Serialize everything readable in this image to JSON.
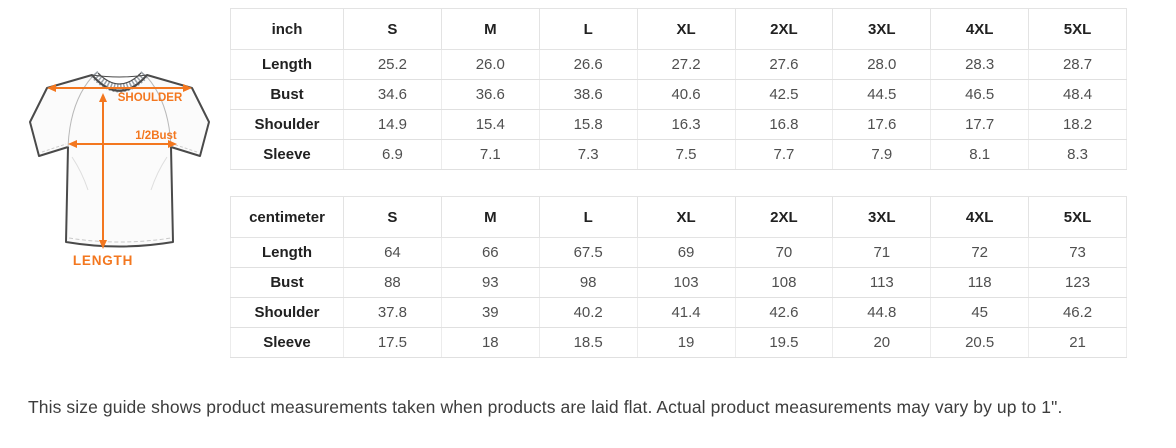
{
  "diagram": {
    "shoulder_label": "SHOULDER",
    "bust_label": "1/2Bust",
    "length_label": "LENGTH",
    "accent_color": "#f3771f",
    "collar_color": "#9aa1a8",
    "outline_color": "#4a4a4a"
  },
  "tables": [
    {
      "unit_header": "inch",
      "columns": [
        "S",
        "M",
        "L",
        "XL",
        "2XL",
        "3XL",
        "4XL",
        "5XL"
      ],
      "rows": [
        {
          "label": "Length",
          "values": [
            "25.2",
            "26.0",
            "26.6",
            "27.2",
            "27.6",
            "28.0",
            "28.3",
            "28.7"
          ]
        },
        {
          "label": "Bust",
          "values": [
            "34.6",
            "36.6",
            "38.6",
            "40.6",
            "42.5",
            "44.5",
            "46.5",
            "48.4"
          ]
        },
        {
          "label": "Shoulder",
          "values": [
            "14.9",
            "15.4",
            "15.8",
            "16.3",
            "16.8",
            "17.6",
            "17.7",
            "18.2"
          ]
        },
        {
          "label": "Sleeve",
          "values": [
            "6.9",
            "7.1",
            "7.3",
            "7.5",
            "7.7",
            "7.9",
            "8.1",
            "8.3"
          ]
        }
      ]
    },
    {
      "unit_header": "centimeter",
      "columns": [
        "S",
        "M",
        "L",
        "XL",
        "2XL",
        "3XL",
        "4XL",
        "5XL"
      ],
      "rows": [
        {
          "label": "Length",
          "values": [
            "64",
            "66",
            "67.5",
            "69",
            "70",
            "71",
            "72",
            "73"
          ]
        },
        {
          "label": "Bust",
          "values": [
            "88",
            "93",
            "98",
            "103",
            "108",
            "113",
            "118",
            "123"
          ]
        },
        {
          "label": "Shoulder",
          "values": [
            "37.8",
            "39",
            "40.2",
            "41.4",
            "42.6",
            "44.8",
            "45",
            "46.2"
          ]
        },
        {
          "label": "Sleeve",
          "values": [
            "17.5",
            "18",
            "18.5",
            "19",
            "19.5",
            "20",
            "20.5",
            "21"
          ]
        }
      ]
    }
  ],
  "note": "This size guide shows product measurements taken when products are laid flat. Actual product measurements may vary by up to 1\"."
}
